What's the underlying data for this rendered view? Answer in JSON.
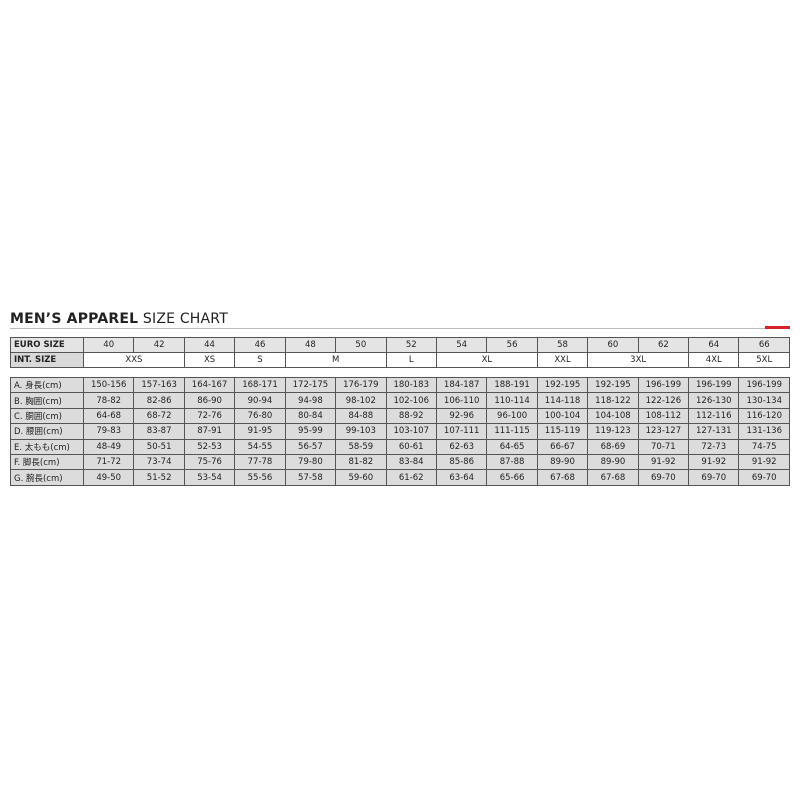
{
  "title": {
    "bold": "MEN’S APPAREL",
    "regular": "SIZE CHART"
  },
  "table": {
    "euro_label": "EURO SIZE",
    "euro_sizes": [
      40,
      42,
      44,
      46,
      48,
      50,
      52,
      54,
      56,
      58,
      60,
      62,
      64,
      66
    ],
    "int_label": "INT. SIZE",
    "int_sizes": [
      "XXS",
      null,
      "XS",
      "S",
      "M",
      null,
      "L",
      "XL",
      null,
      "XXL",
      "3XL",
      null,
      "4XL",
      "5XL"
    ],
    "rows": [
      {
        "label": "A. 身長(cm)",
        "values": [
          "150-156",
          "157-163",
          "164-167",
          "168-171",
          "172-175",
          "176-179",
          "180-183",
          "184-187",
          "188-191",
          "192-195",
          "192-195",
          "196-199",
          "196-199",
          "196-199"
        ]
      },
      {
        "label": "B. 胸囲(cm)",
        "values": [
          "78-82",
          "82-86",
          "86-90",
          "90-94",
          "94-98",
          "98-102",
          "102-106",
          "106-110",
          "110-114",
          "114-118",
          "118-122",
          "122-126",
          "126-130",
          "130-134"
        ]
      },
      {
        "label": "C. 胴囲(cm)",
        "values": [
          "64-68",
          "68-72",
          "72-76",
          "76-80",
          "80-84",
          "84-88",
          "88-92",
          "92-96",
          "96-100",
          "100-104",
          "104-108",
          "108-112",
          "112-116",
          "116-120"
        ]
      },
      {
        "label": "D. 腰囲(cm)",
        "values": [
          "79-83",
          "83-87",
          "87-91",
          "91-95",
          "95-99",
          "99-103",
          "103-107",
          "107-111",
          "111-115",
          "115-119",
          "119-123",
          "123-127",
          "127-131",
          "131-136"
        ]
      },
      {
        "label": "E. 太もも(cm)",
        "values": [
          "48-49",
          "50-51",
          "52-53",
          "54-55",
          "56-57",
          "58-59",
          "60-61",
          "62-63",
          "64-65",
          "66-67",
          "68-69",
          "70-71",
          "72-73",
          "74-75"
        ]
      },
      {
        "label": "F. 脚長(cm)",
        "values": [
          "71-72",
          "73-74",
          "75-76",
          "77-78",
          "79-80",
          "81-82",
          "83-84",
          "85-86",
          "87-88",
          "89-90",
          "89-90",
          "91-92",
          "91-92",
          "91-92"
        ]
      },
      {
        "label": "G. 腕長(cm)",
        "values": [
          "49-50",
          "51-52",
          "53-54",
          "55-56",
          "57-58",
          "59-60",
          "61-62",
          "63-64",
          "65-66",
          "67-68",
          "67-68",
          "69-70",
          "69-70",
          "69-70"
        ]
      }
    ]
  }
}
